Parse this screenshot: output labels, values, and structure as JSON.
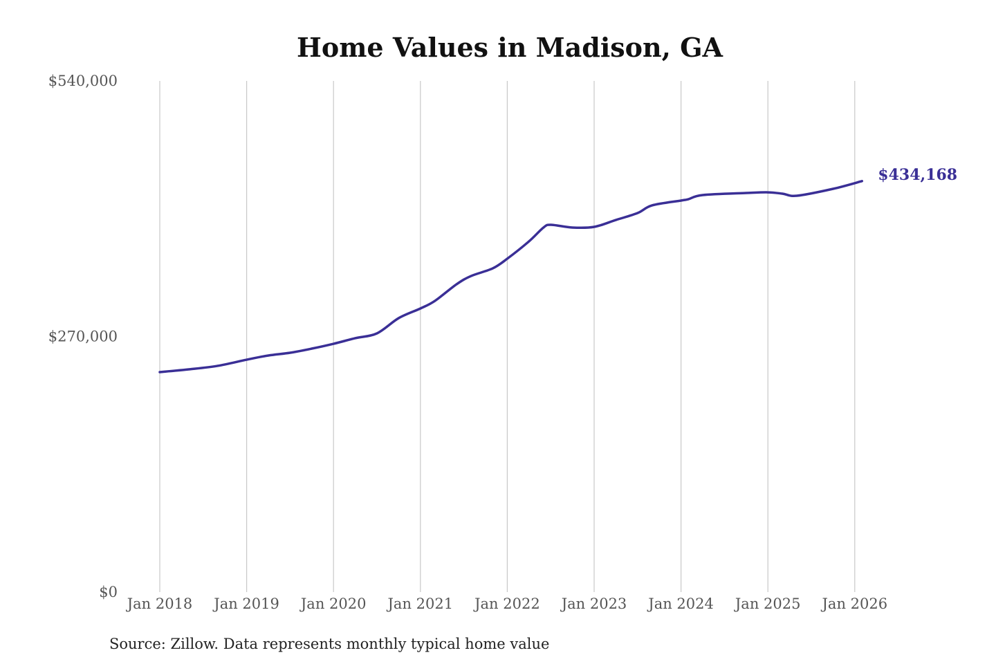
{
  "chart_data": {
    "type": "line",
    "title": "Home Values in Madison, GA",
    "xlabel": "",
    "ylabel": "",
    "ylim": [
      0,
      540000
    ],
    "y_ticks": [
      "$540,000",
      "$270,000",
      "$0"
    ],
    "y_tick_values": [
      540000,
      270000,
      0
    ],
    "x_ticks": [
      "Jan 2018",
      "Jan 2019",
      "Jan 2020",
      "Jan 2021",
      "Jan 2022",
      "Jan 2023",
      "Jan 2024",
      "Jan 2025",
      "Jan 2026"
    ],
    "grid": "vertical",
    "line_color": "#3a2f96",
    "end_label": "$434,168",
    "source": "Source: Zillow. Data represents monthly typical home value",
    "series": [
      {
        "points": [
          [
            "2018-01",
            232400
          ],
          [
            "2018-05",
            235300
          ],
          [
            "2018-09",
            239000
          ],
          [
            "2019-01",
            245500
          ],
          [
            "2019-04",
            249900
          ],
          [
            "2019-07",
            252800
          ],
          [
            "2019-10",
            257200
          ],
          [
            "2020-01",
            262300
          ],
          [
            "2020-04",
            268200
          ],
          [
            "2020-07",
            273300
          ],
          [
            "2020-10",
            289400
          ],
          [
            "2021-01",
            299600
          ],
          [
            "2021-03",
            307600
          ],
          [
            "2021-06",
            325200
          ],
          [
            "2021-08",
            333900
          ],
          [
            "2021-11",
            342000
          ],
          [
            "2022-01",
            352200
          ],
          [
            "2022-04",
            370500
          ],
          [
            "2022-06",
            385100
          ],
          [
            "2022-07",
            388000
          ],
          [
            "2022-10",
            385100
          ],
          [
            "2023-01",
            385800
          ],
          [
            "2023-04",
            393100
          ],
          [
            "2023-07",
            400400
          ],
          [
            "2023-09",
            408500
          ],
          [
            "2024-01",
            413600
          ],
          [
            "2024-02",
            415000
          ],
          [
            "2024-04",
            419400
          ],
          [
            "2024-10",
            421600
          ],
          [
            "2025-01",
            422300
          ],
          [
            "2025-03",
            420900
          ],
          [
            "2025-05",
            418700
          ],
          [
            "2025-10",
            426000
          ],
          [
            "2026-02",
            434168
          ]
        ]
      }
    ]
  }
}
